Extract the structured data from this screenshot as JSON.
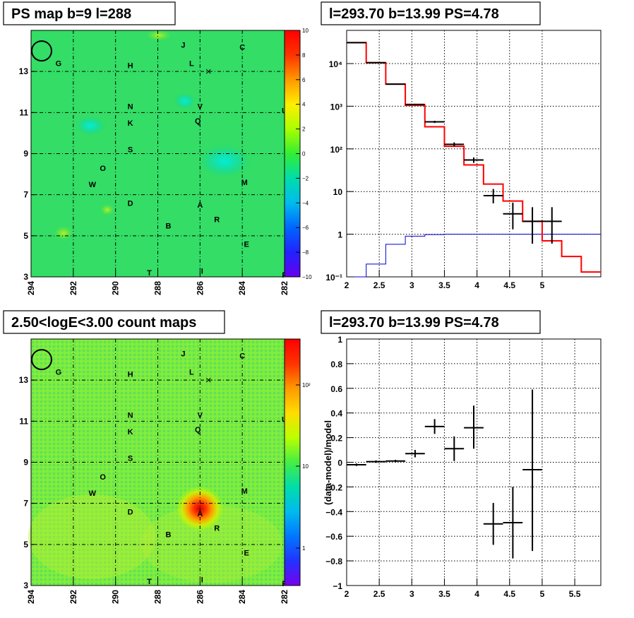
{
  "panels": {
    "ps_map": {
      "title": "PS map b=9 l=288"
    },
    "count_map": {
      "title": "2.50<logE<3.00 count maps"
    },
    "spectrum": {
      "title": "l=293.70 b=13.99 PS=4.78"
    },
    "residual": {
      "title": "l=293.70 b=13.99 PS=4.78"
    }
  },
  "chart_data": [
    {
      "type": "heatmap",
      "title": "PS map b=9 l=288",
      "x_ticks": [
        "294",
        "292",
        "290",
        "288",
        "286",
        "284",
        "282"
      ],
      "y_ticks": [
        "3",
        "5",
        "7",
        "9",
        "11",
        "13"
      ],
      "xlim": [
        294,
        282
      ],
      "ylim": [
        3,
        15
      ],
      "colorbar": {
        "range": [
          -10,
          10
        ],
        "ticks": [
          "10",
          "8",
          "6",
          "4",
          "2",
          "0",
          "−2",
          "−4",
          "−6",
          "−8",
          "−10"
        ]
      },
      "sources": [
        {
          "label": "J",
          "l": 286.8,
          "b": 14.3
        },
        {
          "label": "C",
          "l": 284.0,
          "b": 14.2
        },
        {
          "label": "G",
          "l": 292.7,
          "b": 13.4
        },
        {
          "label": "H",
          "l": 289.3,
          "b": 13.3
        },
        {
          "label": "L",
          "l": 286.4,
          "b": 13.4
        },
        {
          "label": "N",
          "l": 289.3,
          "b": 11.3
        },
        {
          "label": "V",
          "l": 286.0,
          "b": 11.3
        },
        {
          "label": "U",
          "l": 282.0,
          "b": 11.1
        },
        {
          "label": "K",
          "l": 289.3,
          "b": 10.5
        },
        {
          "label": "Q",
          "l": 286.1,
          "b": 10.6
        },
        {
          "label": "S",
          "l": 289.3,
          "b": 9.2
        },
        {
          "label": "O",
          "l": 290.6,
          "b": 8.3
        },
        {
          "label": "W",
          "l": 291.1,
          "b": 7.5
        },
        {
          "label": "M",
          "l": 283.9,
          "b": 7.6
        },
        {
          "label": "D",
          "l": 289.3,
          "b": 6.6
        },
        {
          "label": "A",
          "l": 286.0,
          "b": 6.5
        },
        {
          "label": "R",
          "l": 285.2,
          "b": 5.8
        },
        {
          "label": "B",
          "l": 287.5,
          "b": 5.5
        },
        {
          "label": "E",
          "l": 283.8,
          "b": 4.6
        },
        {
          "label": "I",
          "l": 285.9,
          "b": 3.3
        },
        {
          "label": "T",
          "l": 288.4,
          "b": 3.2
        },
        {
          "label": "P",
          "l": 282.0,
          "b": 3.1
        }
      ],
      "marker_cross": {
        "l": 285.6,
        "b": 13.0
      },
      "circle": {
        "l": 293.5,
        "b": 14.0
      }
    },
    {
      "type": "heatmap",
      "title": "2.50<logE<3.00 count maps",
      "x_ticks": [
        "294",
        "292",
        "290",
        "288",
        "286",
        "284",
        "282"
      ],
      "y_ticks": [
        "3",
        "5",
        "7",
        "9",
        "11",
        "13"
      ],
      "xlim": [
        294,
        282
      ],
      "ylim": [
        3,
        15
      ],
      "colorbar": {
        "scale": "log",
        "ticks": [
          "10²",
          "10",
          "1"
        ]
      },
      "hotspot": {
        "l": 286.0,
        "b": 6.6
      }
    },
    {
      "type": "line",
      "title": "l=293.70 b=13.99 PS=4.78",
      "xlabel": "",
      "ylabel": "",
      "xlim": [
        2,
        5.9
      ],
      "ylim": [
        0.1,
        60000
      ],
      "yscale": "log",
      "x_ticks": [
        "2",
        "2.5",
        "3",
        "3.5",
        "4",
        "4.5",
        "5"
      ],
      "y_ticks": [
        "10⁻¹",
        "1",
        "10",
        "10²",
        "10³",
        "10⁴"
      ],
      "series": [
        {
          "color": "#ff0000",
          "values": [
            {
              "x0": 2.0,
              "x1": 2.3,
              "y": 31000
            },
            {
              "x0": 2.3,
              "x1": 2.6,
              "y": 10500
            },
            {
              "x0": 2.6,
              "x1": 2.9,
              "y": 3300
            },
            {
              "x0": 2.9,
              "x1": 3.2,
              "y": 1050
            },
            {
              "x0": 3.2,
              "x1": 3.5,
              "y": 330
            },
            {
              "x0": 3.5,
              "x1": 3.8,
              "y": 115
            },
            {
              "x0": 3.8,
              "x1": 4.1,
              "y": 42
            },
            {
              "x0": 4.1,
              "x1": 4.4,
              "y": 15
            },
            {
              "x0": 4.4,
              "x1": 4.7,
              "y": 6
            },
            {
              "x0": 4.7,
              "x1": 5.0,
              "y": 2
            },
            {
              "x0": 5.0,
              "x1": 5.3,
              "y": 0.7
            },
            {
              "x0": 5.3,
              "x1": 5.6,
              "y": 0.3
            },
            {
              "x0": 5.6,
              "x1": 5.9,
              "y": 0.13
            }
          ]
        },
        {
          "color": "#0000cc",
          "values": [
            {
              "x0": 2.0,
              "x1": 2.3,
              "y": 0.01
            },
            {
              "x0": 2.3,
              "x1": 2.6,
              "y": 0.2
            },
            {
              "x0": 2.6,
              "x1": 2.9,
              "y": 0.58
            },
            {
              "x0": 2.9,
              "x1": 3.2,
              "y": 0.9
            },
            {
              "x0": 3.2,
              "x1": 3.5,
              "y": 0.98
            },
            {
              "x0": 3.5,
              "x1": 5.9,
              "y": 1.0
            }
          ]
        },
        {
          "color": "#000000",
          "points": [
            {
              "x": 2.15,
              "y": 31000,
              "ylo": 30800,
              "yhi": 31200
            },
            {
              "x": 2.45,
              "y": 10500,
              "ylo": 10400,
              "yhi": 10600
            },
            {
              "x": 2.75,
              "y": 3300,
              "ylo": 3240,
              "yhi": 3360
            },
            {
              "x": 3.05,
              "y": 1100,
              "ylo": 1060,
              "yhi": 1140
            },
            {
              "x": 3.35,
              "y": 430,
              "ylo": 405,
              "yhi": 455
            },
            {
              "x": 3.65,
              "y": 128,
              "ylo": 115,
              "yhi": 142
            },
            {
              "x": 3.95,
              "y": 55,
              "ylo": 47,
              "yhi": 63
            },
            {
              "x": 4.25,
              "y": 8,
              "ylo": 5.3,
              "yhi": 11.5
            },
            {
              "x": 4.55,
              "y": 3,
              "ylo": 1.3,
              "yhi": 5.5
            },
            {
              "x": 4.85,
              "y": 2,
              "ylo": 0.6,
              "yhi": 4.3
            },
            {
              "x": 5.15,
              "y": 2,
              "ylo": 0.6,
              "yhi": 4.3
            }
          ]
        }
      ]
    },
    {
      "type": "scatter",
      "title": "l=293.70 b=13.99 PS=4.78",
      "ylabel": "(data-model)/model",
      "xlim": [
        2,
        5.9
      ],
      "ylim": [
        -1,
        1
      ],
      "x_ticks": [
        "2",
        "2.5",
        "3",
        "3.5",
        "4",
        "4.5",
        "5",
        "5.5"
      ],
      "y_ticks": [
        "1",
        "0.8",
        "0.6",
        "0.4",
        "0.2",
        "0",
        "−0.2",
        "−0.4",
        "−0.6",
        "−0.8",
        "−1"
      ],
      "points": [
        {
          "x": 2.15,
          "y": -0.02,
          "ylo": -0.03,
          "yhi": -0.01
        },
        {
          "x": 2.45,
          "y": 0.005,
          "ylo": -0.005,
          "yhi": 0.015
        },
        {
          "x": 2.75,
          "y": 0.01,
          "ylo": 0.0,
          "yhi": 0.02
        },
        {
          "x": 3.05,
          "y": 0.07,
          "ylo": 0.04,
          "yhi": 0.1
        },
        {
          "x": 3.35,
          "y": 0.29,
          "ylo": 0.23,
          "yhi": 0.35
        },
        {
          "x": 3.65,
          "y": 0.11,
          "ylo": 0.01,
          "yhi": 0.21
        },
        {
          "x": 3.95,
          "y": 0.28,
          "ylo": 0.11,
          "yhi": 0.46
        },
        {
          "x": 4.25,
          "y": -0.5,
          "ylo": -0.67,
          "yhi": -0.33
        },
        {
          "x": 4.55,
          "y": -0.49,
          "ylo": -0.78,
          "yhi": -0.2
        },
        {
          "x": 4.85,
          "y": -0.06,
          "ylo": -0.72,
          "yhi": 0.59
        }
      ]
    }
  ]
}
